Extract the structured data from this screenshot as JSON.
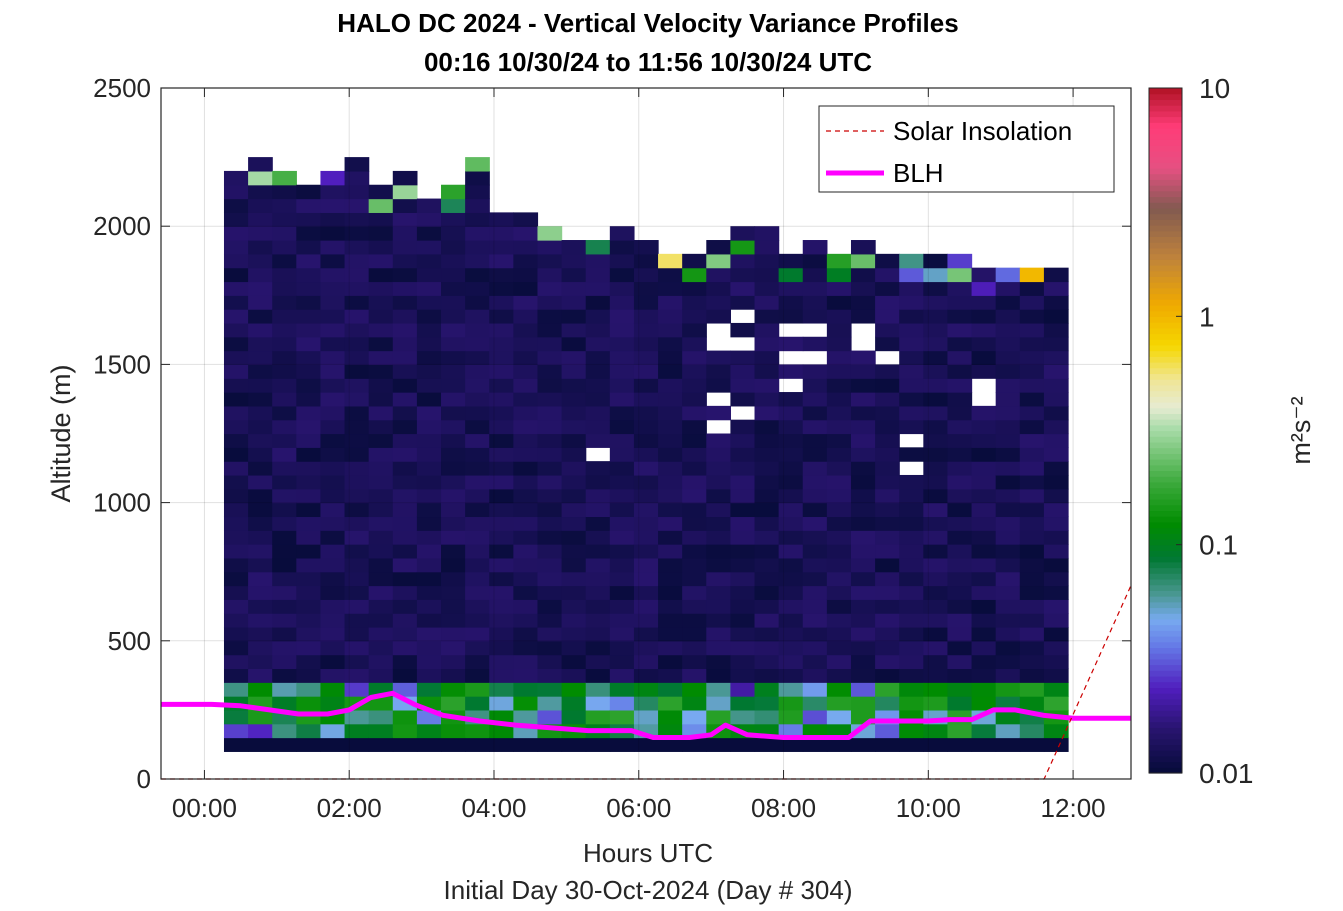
{
  "title_line1": "HALO DC 2024 - Vertical Velocity Variance Profiles",
  "title_line2": "00:16 10/30/24 to 11:56 10/30/24  UTC",
  "xlabel": "Hours UTC",
  "xlabel2": "Initial Day 30-Oct-2024 (Day # 304)",
  "colorbar": {
    "label": "m²s⁻²",
    "ticks": [
      "10",
      "1",
      "0.1",
      "0.01"
    ],
    "scale": "log",
    "range": [
      0.01,
      10
    ]
  },
  "chart_data": {
    "type": "heatmap",
    "title": "HALO DC 2024 - Vertical Velocity Variance Profiles\n00:16 10/30/24 to 11:56 10/30/24  UTC",
    "xlabel": "Hours UTC",
    "ylabel": "Altitude (m)",
    "xlim_hours": [
      -0.6,
      12.8
    ],
    "ylim": [
      0,
      2500
    ],
    "xticks": [
      "00:00",
      "02:00",
      "04:00",
      "06:00",
      "08:00",
      "10:00",
      "12:00"
    ],
    "xtick_hours": [
      0,
      2,
      4,
      6,
      8,
      10,
      12
    ],
    "yticks": [
      0,
      500,
      1000,
      1500,
      2000,
      2500
    ],
    "grid": true,
    "legend": {
      "location": "top-right",
      "entries": [
        "Solar Insolation",
        "BLH"
      ]
    },
    "heatmap": {
      "time_range_hours": [
        0.27,
        11.93
      ],
      "altitude_range_m": [
        100,
        2250
      ],
      "units": "m^2 s^-2",
      "background_value": 0.01,
      "note": "Mostly near 0.01 m^2 s^-2; higher variance (0.03-0.2) in lowest ~300 m and scattered near the profile top."
    },
    "series": [
      {
        "name": "BLH",
        "color": "#ff00ff",
        "x_hours": [
          -0.6,
          0.1,
          0.5,
          0.9,
          1.3,
          1.7,
          2.0,
          2.3,
          2.6,
          2.9,
          3.3,
          3.8,
          4.3,
          4.8,
          5.3,
          5.9,
          6.2,
          6.7,
          7.0,
          7.2,
          7.5,
          8.0,
          8.5,
          8.9,
          9.2,
          9.6,
          10.0,
          10.3,
          10.6,
          10.9,
          11.2,
          11.6,
          12.0,
          12.8
        ],
        "y": [
          270,
          270,
          265,
          250,
          235,
          235,
          250,
          295,
          310,
          270,
          230,
          210,
          195,
          185,
          175,
          175,
          150,
          150,
          160,
          195,
          160,
          150,
          150,
          150,
          210,
          210,
          210,
          215,
          215,
          250,
          250,
          230,
          220,
          220
        ]
      },
      {
        "name": "Solar Insolation",
        "color": "#cc0000",
        "style": "dashed",
        "x_hours": [
          -0.6,
          11.6,
          12.8
        ],
        "y": [
          0,
          0,
          700
        ]
      }
    ]
  }
}
